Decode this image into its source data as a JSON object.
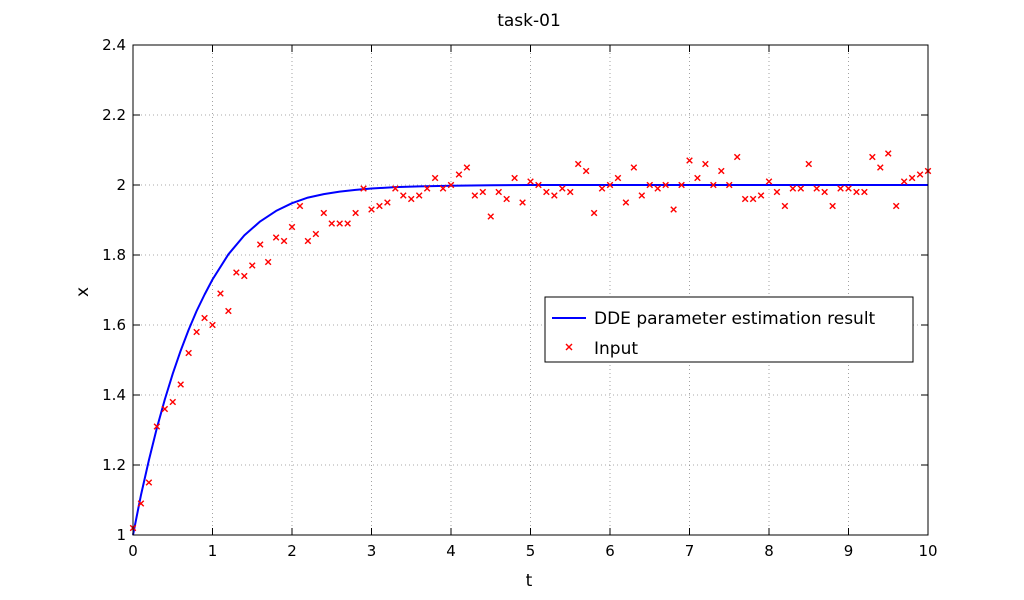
{
  "chart_data": {
    "type": "line",
    "title": "task-01",
    "xlabel": "t",
    "ylabel": "x",
    "xlim": [
      0,
      10
    ],
    "ylim": [
      1,
      2.4
    ],
    "xticks": [
      0,
      1,
      2,
      3,
      4,
      5,
      6,
      7,
      8,
      9,
      10
    ],
    "yticks": [
      1,
      1.2,
      1.4,
      1.6,
      1.8,
      2,
      2.2,
      2.4
    ],
    "xtick_labels": [
      "0",
      "1",
      "2",
      "3",
      "4",
      "5",
      "6",
      "7",
      "8",
      "9",
      "10"
    ],
    "ytick_labels": [
      "1",
      "1.2",
      "1.4",
      "1.6",
      "1.8",
      "2",
      "2.2",
      "2.4"
    ],
    "grid": true,
    "legend_position": "center-right",
    "series": [
      {
        "name": "DDE parameter estimation result",
        "kind": "line",
        "color": "#0000ff",
        "x": [
          0,
          0.1,
          0.2,
          0.3,
          0.4,
          0.5,
          0.6,
          0.7,
          0.8,
          0.9,
          1.0,
          1.2,
          1.4,
          1.6,
          1.8,
          2.0,
          2.2,
          2.4,
          2.6,
          2.8,
          3.0,
          3.3,
          3.6,
          4.0,
          4.5,
          5.0,
          6.0,
          7.0,
          8.0,
          9.0,
          10.0
        ],
        "y": [
          1.0,
          1.113,
          1.214,
          1.305,
          1.387,
          1.461,
          1.527,
          1.586,
          1.64,
          1.687,
          1.73,
          1.802,
          1.856,
          1.896,
          1.926,
          1.948,
          1.964,
          1.974,
          1.981,
          1.986,
          1.99,
          1.994,
          1.996,
          1.998,
          1.999,
          2.0,
          2.0,
          2.0,
          2.0,
          2.0,
          2.0
        ]
      },
      {
        "name": "Input",
        "kind": "scatter",
        "color": "#ff0000",
        "marker": "x",
        "x": [
          0.0,
          0.1,
          0.2,
          0.3,
          0.4,
          0.5,
          0.6,
          0.7,
          0.8,
          0.9,
          1.0,
          1.1,
          1.2,
          1.3,
          1.4,
          1.5,
          1.6,
          1.7,
          1.8,
          1.9,
          2.0,
          2.1,
          2.2,
          2.3,
          2.4,
          2.5,
          2.6,
          2.7,
          2.8,
          2.9,
          3.0,
          3.1,
          3.2,
          3.3,
          3.4,
          3.5,
          3.6,
          3.7,
          3.8,
          3.9,
          4.0,
          4.1,
          4.2,
          4.3,
          4.4,
          4.5,
          4.6,
          4.7,
          4.8,
          4.9,
          5.0,
          5.1,
          5.2,
          5.3,
          5.4,
          5.5,
          5.6,
          5.7,
          5.8,
          5.9,
          6.0,
          6.1,
          6.2,
          6.3,
          6.4,
          6.5,
          6.6,
          6.7,
          6.8,
          6.9,
          7.0,
          7.1,
          7.2,
          7.3,
          7.4,
          7.5,
          7.6,
          7.7,
          7.8,
          7.9,
          8.0,
          8.1,
          8.2,
          8.3,
          8.4,
          8.5,
          8.6,
          8.7,
          8.8,
          8.9,
          9.0,
          9.1,
          9.2,
          9.3,
          9.4,
          9.5,
          9.6,
          9.7,
          9.8,
          9.9,
          10.0
        ],
        "y": [
          1.02,
          1.09,
          1.15,
          1.31,
          1.36,
          1.38,
          1.43,
          1.52,
          1.58,
          1.62,
          1.6,
          1.69,
          1.64,
          1.75,
          1.74,
          1.77,
          1.83,
          1.78,
          1.85,
          1.84,
          1.88,
          1.94,
          1.84,
          1.86,
          1.92,
          1.89,
          1.89,
          1.89,
          1.92,
          1.99,
          1.93,
          1.94,
          1.95,
          1.99,
          1.97,
          1.96,
          1.97,
          1.99,
          2.02,
          1.99,
          2.0,
          2.03,
          2.05,
          1.97,
          1.98,
          1.91,
          1.98,
          1.96,
          2.02,
          1.95,
          2.01,
          2.0,
          1.98,
          1.97,
          1.99,
          1.98,
          2.06,
          2.04,
          1.92,
          1.99,
          2.0,
          2.02,
          1.95,
          2.05,
          1.97,
          2.0,
          1.99,
          2.0,
          1.93,
          2.0,
          2.07,
          2.02,
          2.06,
          2.0,
          2.04,
          2.0,
          2.08,
          1.96,
          1.96,
          1.97,
          2.01,
          1.98,
          1.94,
          1.99,
          1.99,
          2.06,
          1.99,
          1.98,
          1.94,
          1.99,
          1.99,
          1.98,
          1.98,
          2.08,
          2.05,
          2.09,
          1.94,
          2.01,
          2.02,
          2.03,
          2.04
        ]
      }
    ]
  }
}
